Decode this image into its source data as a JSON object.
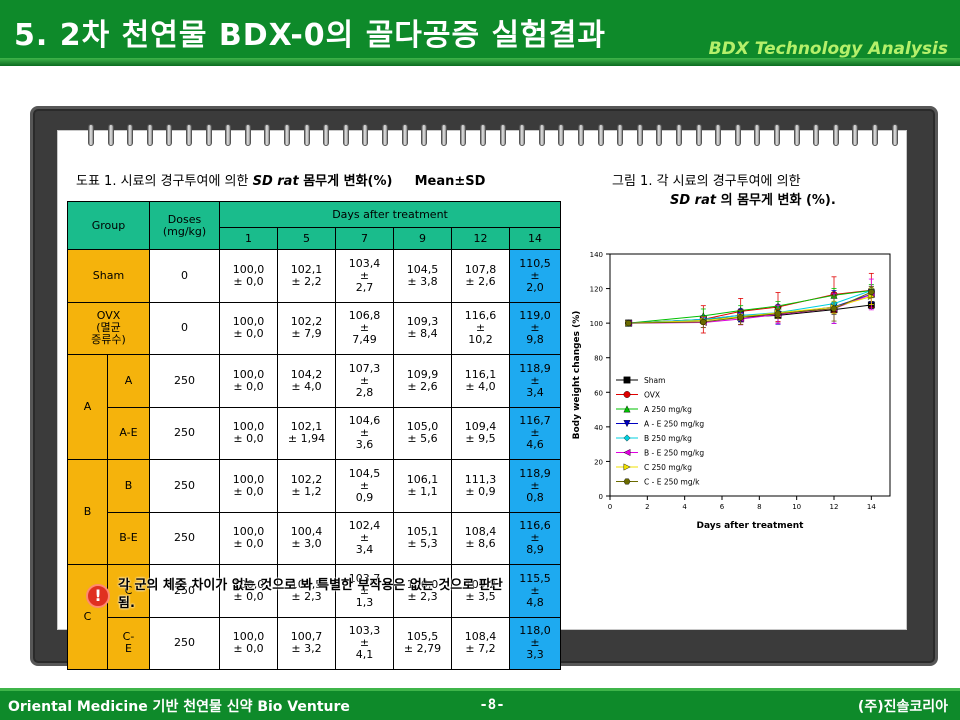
{
  "header": {
    "title": "5. 2차 천연물 BDX-0의 골다공증 실험결과",
    "subtitle": "BDX Technology Analysis"
  },
  "table_caption": {
    "prefix": "도표 1. 시료의 경구투여에 의한 ",
    "italic": "SD rat",
    "suffix": "  몸무게 변화(%)",
    "stat": "Mean±SD"
  },
  "figure_caption": {
    "line1": "그림 1. 각 시료의 경구투여에 의한",
    "line2_italic": "SD rat",
    "line2_suffix": " 의 몸무게  변화 (%)."
  },
  "table": {
    "group_header": "Group",
    "doses_header": "Doses\n(mg/kg)",
    "days_header": "Days after treatment",
    "days": [
      "1",
      "5",
      "7",
      "9",
      "12",
      "14"
    ],
    "rows": [
      {
        "group": "Sham",
        "sub": "",
        "dose": "0",
        "values": [
          "100,0\n± 0,0",
          "102,1\n± 2,2",
          "103,4\n±\n2,7",
          "104,5\n± 3,8",
          "107,8\n± 2,6",
          "110,5\n±\n2,0"
        ]
      },
      {
        "group": "OVX\n(멸균\n증류수)",
        "sub": "",
        "dose": "0",
        "values": [
          "100,0\n± 0,0",
          "102,2\n± 7,9",
          "106,8\n±\n7,49",
          "109,3\n± 8,4",
          "116,6\n±\n10,2",
          "119,0\n±\n9,8"
        ]
      },
      {
        "group": "A",
        "sub": "A",
        "dose": "250",
        "values": [
          "100,0\n± 0,0",
          "104,2\n± 4,0",
          "107,3\n±\n2,8",
          "109,9\n± 2,6",
          "116,1\n± 4,0",
          "118,9\n±\n3,4"
        ]
      },
      {
        "group": "A",
        "sub": "A-E",
        "dose": "250",
        "values": [
          "100,0\n± 0,0",
          "102,1\n± 1,94",
          "104,6\n±\n3,6",
          "105,0\n± 5,6",
          "109,4\n± 9,5",
          "116,7\n±\n4,6"
        ]
      },
      {
        "group": "B",
        "sub": "B",
        "dose": "250",
        "values": [
          "100,0\n± 0,0",
          "102,2\n± 1,2",
          "104,5\n±\n0,9",
          "106,1\n± 1,1",
          "111,3\n± 0,9",
          "118,9\n±\n0,8"
        ]
      },
      {
        "group": "B",
        "sub": "B-E",
        "dose": "250",
        "values": [
          "100,0\n± 0,0",
          "100,4\n± 3,0",
          "102,4\n±\n3,4",
          "105,1\n± 5,3",
          "108,4\n± 8,6",
          "116,6\n±\n8,9"
        ]
      },
      {
        "group": "C",
        "sub": "C",
        "dose": "250",
        "values": [
          "100,0\n± 0,0",
          "101,5\n± 2,3",
          "103,7\n±\n1,3",
          "106,0\n± 2,3",
          "109,2\n± 3,5",
          "115,5\n±\n4,8"
        ]
      },
      {
        "group": "C",
        "sub": "C-\nE",
        "dose": "250",
        "values": [
          "100,0\n± 0,0",
          "100,7\n± 3,2",
          "103,3\n±\n4,1",
          "105,5\n± 2,79",
          "108,4\n± 7,2",
          "118,0\n±\n3,3"
        ]
      }
    ]
  },
  "warning": {
    "icon": "!",
    "text": "각 군의 체중 차이가 없는 것으로 봐 특별한 부작용은 없는 것으로 판단됨."
  },
  "chart_data": {
    "type": "line",
    "xlabel": "Days after treatment",
    "ylabel": "Body weight changes (%)",
    "xlim": [
      0,
      15
    ],
    "ylim": [
      0,
      140
    ],
    "xticks": [
      0,
      2,
      4,
      6,
      8,
      10,
      12,
      14
    ],
    "yticks": [
      0,
      20,
      40,
      60,
      80,
      100,
      120,
      140
    ],
    "x": [
      1,
      5,
      7,
      9,
      12,
      14
    ],
    "legend_position": "lower-left",
    "series": [
      {
        "name": "Sham",
        "color": "#000000",
        "marker": "square",
        "values": [
          100.0,
          102.1,
          103.4,
          104.5,
          107.8,
          110.5
        ],
        "errors": [
          0.0,
          2.2,
          2.7,
          3.8,
          2.6,
          2.0
        ]
      },
      {
        "name": "OVX",
        "color": "#e00000",
        "marker": "circle",
        "values": [
          100.0,
          102.2,
          106.8,
          109.3,
          116.6,
          119.0
        ],
        "errors": [
          0.0,
          7.9,
          7.49,
          8.4,
          10.2,
          9.8
        ]
      },
      {
        "name": "A 250 mg/kg",
        "color": "#00c000",
        "marker": "triangle-up",
        "values": [
          100.0,
          104.2,
          107.3,
          109.9,
          116.1,
          118.9
        ],
        "errors": [
          0.0,
          4.0,
          2.8,
          2.6,
          4.0,
          3.4
        ]
      },
      {
        "name": "A - E 250 mg/kg",
        "color": "#0000c0",
        "marker": "triangle-down",
        "values": [
          100.0,
          102.1,
          104.6,
          105.0,
          109.4,
          116.7
        ],
        "errors": [
          0.0,
          1.94,
          3.6,
          5.6,
          9.5,
          4.6
        ]
      },
      {
        "name": "B 250 mg/kg",
        "color": "#00d0e0",
        "marker": "diamond",
        "values": [
          100.0,
          102.2,
          104.5,
          106.1,
          111.3,
          118.9
        ],
        "errors": [
          0.0,
          1.2,
          0.9,
          1.1,
          0.9,
          0.8
        ]
      },
      {
        "name": "B - E 250 mg/kg",
        "color": "#e000e0",
        "marker": "triangle-left",
        "values": [
          100.0,
          100.4,
          102.4,
          105.1,
          108.4,
          116.6
        ],
        "errors": [
          0.0,
          3.0,
          3.4,
          5.3,
          8.6,
          8.9
        ]
      },
      {
        "name": "C 250 mg/kg",
        "color": "#f0e000",
        "marker": "triangle-right",
        "values": [
          100.0,
          101.5,
          103.7,
          106.0,
          109.2,
          115.5
        ],
        "errors": [
          0.0,
          2.3,
          1.3,
          2.3,
          3.5,
          4.8
        ]
      },
      {
        "name": "C - E 250 mg/k",
        "color": "#6b6b00",
        "marker": "hexagon",
        "values": [
          100.0,
          100.7,
          103.3,
          105.5,
          108.4,
          118.0
        ],
        "errors": [
          0.0,
          3.2,
          4.1,
          2.79,
          7.2,
          3.3
        ]
      }
    ]
  },
  "footer": {
    "left": "Oriental Medicine 기반 천연물 신약 Bio Venture",
    "page": "-8-",
    "right": "(주)진솔코리아"
  }
}
